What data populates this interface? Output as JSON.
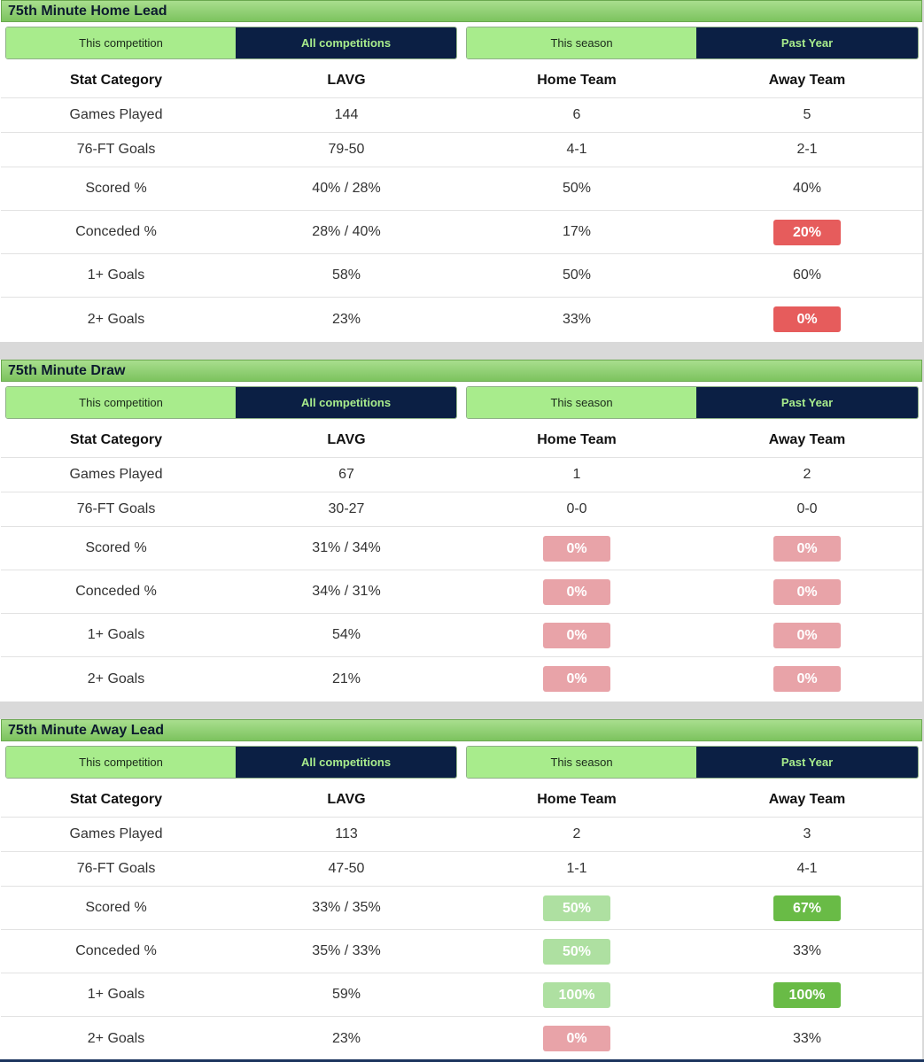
{
  "sections": [
    {
      "title": "75th Minute Home Lead",
      "toggle_left": {
        "option1": "This competition",
        "option2": "All competitions"
      },
      "toggle_right": {
        "option1": "This season",
        "option2": "Past Year"
      },
      "headers": [
        "Stat Category",
        "LAVG",
        "Home Team",
        "Away Team"
      ],
      "rows": [
        {
          "category": "Games Played",
          "lavg": "144",
          "home": "6",
          "away": "5"
        },
        {
          "category": "76-FT Goals",
          "lavg": "79-50",
          "home": "4-1",
          "away": "2-1"
        },
        {
          "category": "Scored %",
          "lavg": "40% / 28%",
          "home": "50%",
          "away": "40%"
        },
        {
          "category": "Conceded %",
          "lavg": "28% / 40%",
          "home": "17%",
          "away": "20%"
        },
        {
          "category": "1+ Goals",
          "lavg": "58%",
          "home": "50%",
          "away": "60%"
        },
        {
          "category": "2+ Goals",
          "lavg": "23%",
          "home": "33%",
          "away": "0%"
        }
      ]
    },
    {
      "title": "75th Minute Draw",
      "toggle_left": {
        "option1": "This competition",
        "option2": "All competitions"
      },
      "toggle_right": {
        "option1": "This season",
        "option2": "Past Year"
      },
      "headers": [
        "Stat Category",
        "LAVG",
        "Home Team",
        "Away Team"
      ],
      "rows": [
        {
          "category": "Games Played",
          "lavg": "67",
          "home": "1",
          "away": "2"
        },
        {
          "category": "76-FT Goals",
          "lavg": "30-27",
          "home": "0-0",
          "away": "0-0"
        },
        {
          "category": "Scored %",
          "lavg": "31% / 34%",
          "home": "0%",
          "away": "0%"
        },
        {
          "category": "Conceded %",
          "lavg": "34% / 31%",
          "home": "0%",
          "away": "0%"
        },
        {
          "category": "1+ Goals",
          "lavg": "54%",
          "home": "0%",
          "away": "0%"
        },
        {
          "category": "2+ Goals",
          "lavg": "21%",
          "home": "0%",
          "away": "0%"
        }
      ]
    },
    {
      "title": "75th Minute Away Lead",
      "toggle_left": {
        "option1": "This competition",
        "option2": "All competitions"
      },
      "toggle_right": {
        "option1": "This season",
        "option2": "Past Year"
      },
      "headers": [
        "Stat Category",
        "LAVG",
        "Home Team",
        "Away Team"
      ],
      "rows": [
        {
          "category": "Games Played",
          "lavg": "113",
          "home": "2",
          "away": "3"
        },
        {
          "category": "76-FT Goals",
          "lavg": "47-50",
          "home": "1-1",
          "away": "4-1"
        },
        {
          "category": "Scored %",
          "lavg": "33% / 35%",
          "home": "50%",
          "away": "67%"
        },
        {
          "category": "Conceded %",
          "lavg": "35% / 33%",
          "home": "50%",
          "away": "33%"
        },
        {
          "category": "1+ Goals",
          "lavg": "59%",
          "home": "100%",
          "away": "100%"
        },
        {
          "category": "2+ Goals",
          "lavg": "23%",
          "home": "0%",
          "away": "33%"
        }
      ]
    }
  ],
  "colors": {
    "header_green": "#7cc35e",
    "toggle_light": "#a8ec8c",
    "toggle_dark": "#0b1f44",
    "badge_red": "#e65c5c",
    "badge_pink": "#e8a3a8",
    "badge_light_green": "#aee0a1",
    "badge_green": "#69bb46"
  }
}
